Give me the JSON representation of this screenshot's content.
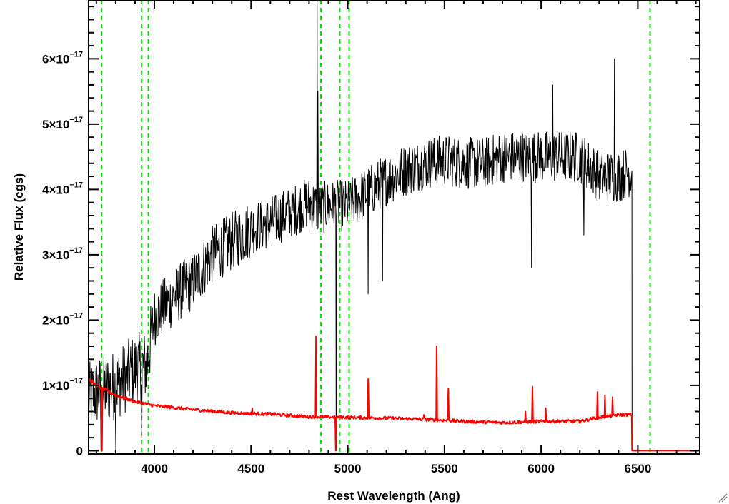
{
  "chart_data": {
    "type": "line",
    "title": "",
    "xlabel": "Rest Wavelength (Ang)",
    "ylabel": "Relative Flux (cgs)",
    "xlim": [
      3660,
      6820
    ],
    "ylim": [
      -5e-19,
      6.9e-17
    ],
    "x_ticks": [
      4000,
      4500,
      5000,
      5500,
      6000,
      6500
    ],
    "x_tick_labels": [
      "4000",
      "4500",
      "5000",
      "5500",
      "6000",
      "6500"
    ],
    "y_ticks": [
      0,
      1e-17,
      2e-17,
      3e-17,
      4e-17,
      5e-17,
      6e-17
    ],
    "y_tick_labels": [
      {
        "mantissa": "0",
        "exponent": ""
      },
      {
        "mantissa": "1×10",
        "exponent": "−17"
      },
      {
        "mantissa": "2×10",
        "exponent": "−17"
      },
      {
        "mantissa": "3×10",
        "exponent": "−17"
      },
      {
        "mantissa": "4×10",
        "exponent": "−17"
      },
      {
        "mantissa": "5×10",
        "exponent": "−17"
      },
      {
        "mantissa": "6×10",
        "exponent": "−17"
      }
    ],
    "vertical_lines": [
      3727,
      3934,
      3969,
      4861,
      4959,
      5007,
      6563
    ],
    "grid": false,
    "series": [
      {
        "color": "#000000",
        "style": "noisy spectrum",
        "anchors_x": [
          3660,
          3700,
          3800,
          3900,
          3960,
          4000,
          4100,
          4200,
          4300,
          4400,
          4500,
          4600,
          4700,
          4800,
          4850,
          4900,
          5000,
          5100,
          5200,
          5300,
          5400,
          5500,
          5600,
          5700,
          5800,
          5900,
          6000,
          6100,
          6200,
          6300,
          6400,
          6470
        ],
        "anchors_y": [
          8e-18,
          9e-18,
          1e-17,
          1.25e-17,
          1.3e-17,
          2.05e-17,
          2.35e-17,
          2.6e-17,
          3e-17,
          3.2e-17,
          3.4e-17,
          3.5e-17,
          3.65e-17,
          3.8e-17,
          3.7e-17,
          3.75e-17,
          3.75e-17,
          3.95e-17,
          4.15e-17,
          4.3e-17,
          4.4e-17,
          4.45e-17,
          4.4e-17,
          4.4e-17,
          4.5e-17,
          4.5e-17,
          4.5e-17,
          4.5e-17,
          4.5e-17,
          4.2e-17,
          4.2e-17,
          4.3e-17
        ],
        "end_x": 6470,
        "features": [
          {
            "x": 3725,
            "y": 0.0
          },
          {
            "x": 3800,
            "y": 0.0
          },
          {
            "x": 3935,
            "y": 2e-18
          },
          {
            "x": 4842,
            "y": 6.9e-17
          },
          {
            "x": 4846,
            "y": 5.5e-17
          },
          {
            "x": 4940,
            "y": 0.0
          },
          {
            "x": 5105,
            "y": 2.4e-17
          },
          {
            "x": 5180,
            "y": 2.6e-17
          },
          {
            "x": 5950,
            "y": 2.8e-17
          },
          {
            "x": 6060,
            "y": 5.6e-17
          },
          {
            "x": 6220,
            "y": 3.3e-17
          },
          {
            "x": 6380,
            "y": 6e-17
          }
        ]
      },
      {
        "color": "#ff0000",
        "style": "error spectrum",
        "anchors_x": [
          3660,
          3700,
          3800,
          3900,
          4000,
          4200,
          4400,
          4600,
          4800,
          5000,
          5200,
          5400,
          5600,
          5800,
          6000,
          6200,
          6280,
          6400,
          6470
        ],
        "anchors_y": [
          1.1e-17,
          1e-17,
          8.5e-18,
          7.5e-18,
          6.9e-18,
          6.3e-18,
          5.8e-18,
          5.6e-18,
          5.2e-18,
          5.1e-18,
          5e-18,
          4.8e-18,
          4.5e-18,
          4.3e-18,
          4.5e-18,
          4.5e-18,
          5e-18,
          5.5e-18,
          5.5e-18
        ],
        "end_x": 6470,
        "features": [
          {
            "x": 3730,
            "y": 0.0
          },
          {
            "x": 4505,
            "y": 6.5e-18
          },
          {
            "x": 4835,
            "y": 1.75e-17
          },
          {
            "x": 4938,
            "y": 0.0
          },
          {
            "x": 5105,
            "y": 1.1e-17
          },
          {
            "x": 5395,
            "y": 5.5e-18
          },
          {
            "x": 5460,
            "y": 1.6e-17
          },
          {
            "x": 5520,
            "y": 9.5e-18
          },
          {
            "x": 5920,
            "y": 6e-18
          },
          {
            "x": 5955,
            "y": 9.8e-18
          },
          {
            "x": 6025,
            "y": 6.5e-18
          },
          {
            "x": 6290,
            "y": 9e-18
          },
          {
            "x": 6330,
            "y": 8.5e-18
          },
          {
            "x": 6370,
            "y": 8.2e-18
          }
        ]
      }
    ]
  }
}
